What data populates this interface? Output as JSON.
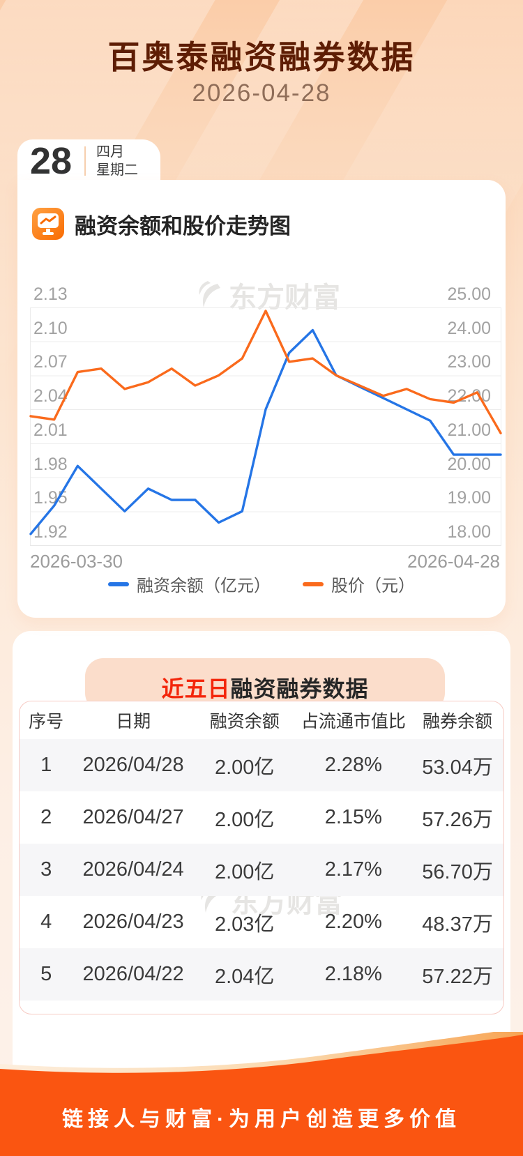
{
  "header": {
    "title": "百奥泰融资融券数据",
    "date": "2026-04-28",
    "calendar": {
      "day": "28",
      "month": "四月",
      "weekday": "星期二"
    }
  },
  "chart_section": {
    "title": "融资余额和股价走势图",
    "icon": "chart-monitor-icon",
    "watermark": "东方财富"
  },
  "chart_data": {
    "type": "line",
    "title": "融资余额和股价走势图",
    "x_axis": {
      "start_label": "2026-03-30",
      "end_label": "2026-04-28",
      "points": 21
    },
    "left_axis": {
      "ticks": [
        "2.13",
        "2.10",
        "2.07",
        "2.04",
        "2.01",
        "1.98",
        "1.95",
        "1.92"
      ],
      "max": 2.13,
      "min": 1.92
    },
    "right_axis": {
      "ticks": [
        "25.00",
        "24.00",
        "23.00",
        "22.00",
        "21.00",
        "20.00",
        "19.00",
        "18.00"
      ],
      "max": 25,
      "min": 18
    },
    "grid": true,
    "legend_position": "bottom",
    "series": [
      {
        "name": "融资余额（亿元）",
        "axis": "left",
        "color": "#2575e6",
        "values": [
          1.93,
          1.955,
          1.99,
          1.97,
          1.95,
          1.97,
          1.96,
          1.96,
          1.94,
          1.95,
          2.04,
          2.09,
          2.11,
          2.07,
          2.06,
          2.05,
          2.04,
          2.03,
          2.0,
          2.0,
          2.0
        ]
      },
      {
        "name": "股价（元）",
        "axis": "right",
        "color": "#fa6a1c",
        "values": [
          21.8,
          21.7,
          23.1,
          23.2,
          22.6,
          22.8,
          23.2,
          22.7,
          23.0,
          23.5,
          24.9,
          23.4,
          23.5,
          23.0,
          22.7,
          22.4,
          22.6,
          22.3,
          22.2,
          22.5,
          21.3
        ]
      }
    ]
  },
  "table_section": {
    "banner": {
      "highlight": "近五日",
      "rest": "融资融券数据"
    },
    "watermark": "东方财富",
    "columns": [
      "序号",
      "日期",
      "融资余额",
      "占流通市值比",
      "融券余额"
    ],
    "rows": [
      [
        "1",
        "2026/04/28",
        "2.00亿",
        "2.28%",
        "53.04万"
      ],
      [
        "2",
        "2026/04/27",
        "2.00亿",
        "2.15%",
        "57.26万"
      ],
      [
        "3",
        "2026/04/24",
        "2.00亿",
        "2.17%",
        "56.70万"
      ],
      [
        "4",
        "2026/04/23",
        "2.03亿",
        "2.20%",
        "48.37万"
      ],
      [
        "5",
        "2026/04/22",
        "2.04亿",
        "2.18%",
        "57.22万"
      ]
    ]
  },
  "footer": {
    "slogan": "链接人与财富·为用户创造更多价值"
  },
  "colors": {
    "title": "#5e1d04",
    "accent_red": "#f3260b",
    "footer_orange": "#fa5511",
    "line_blue": "#2575e6",
    "line_orange": "#fa6a1c"
  }
}
